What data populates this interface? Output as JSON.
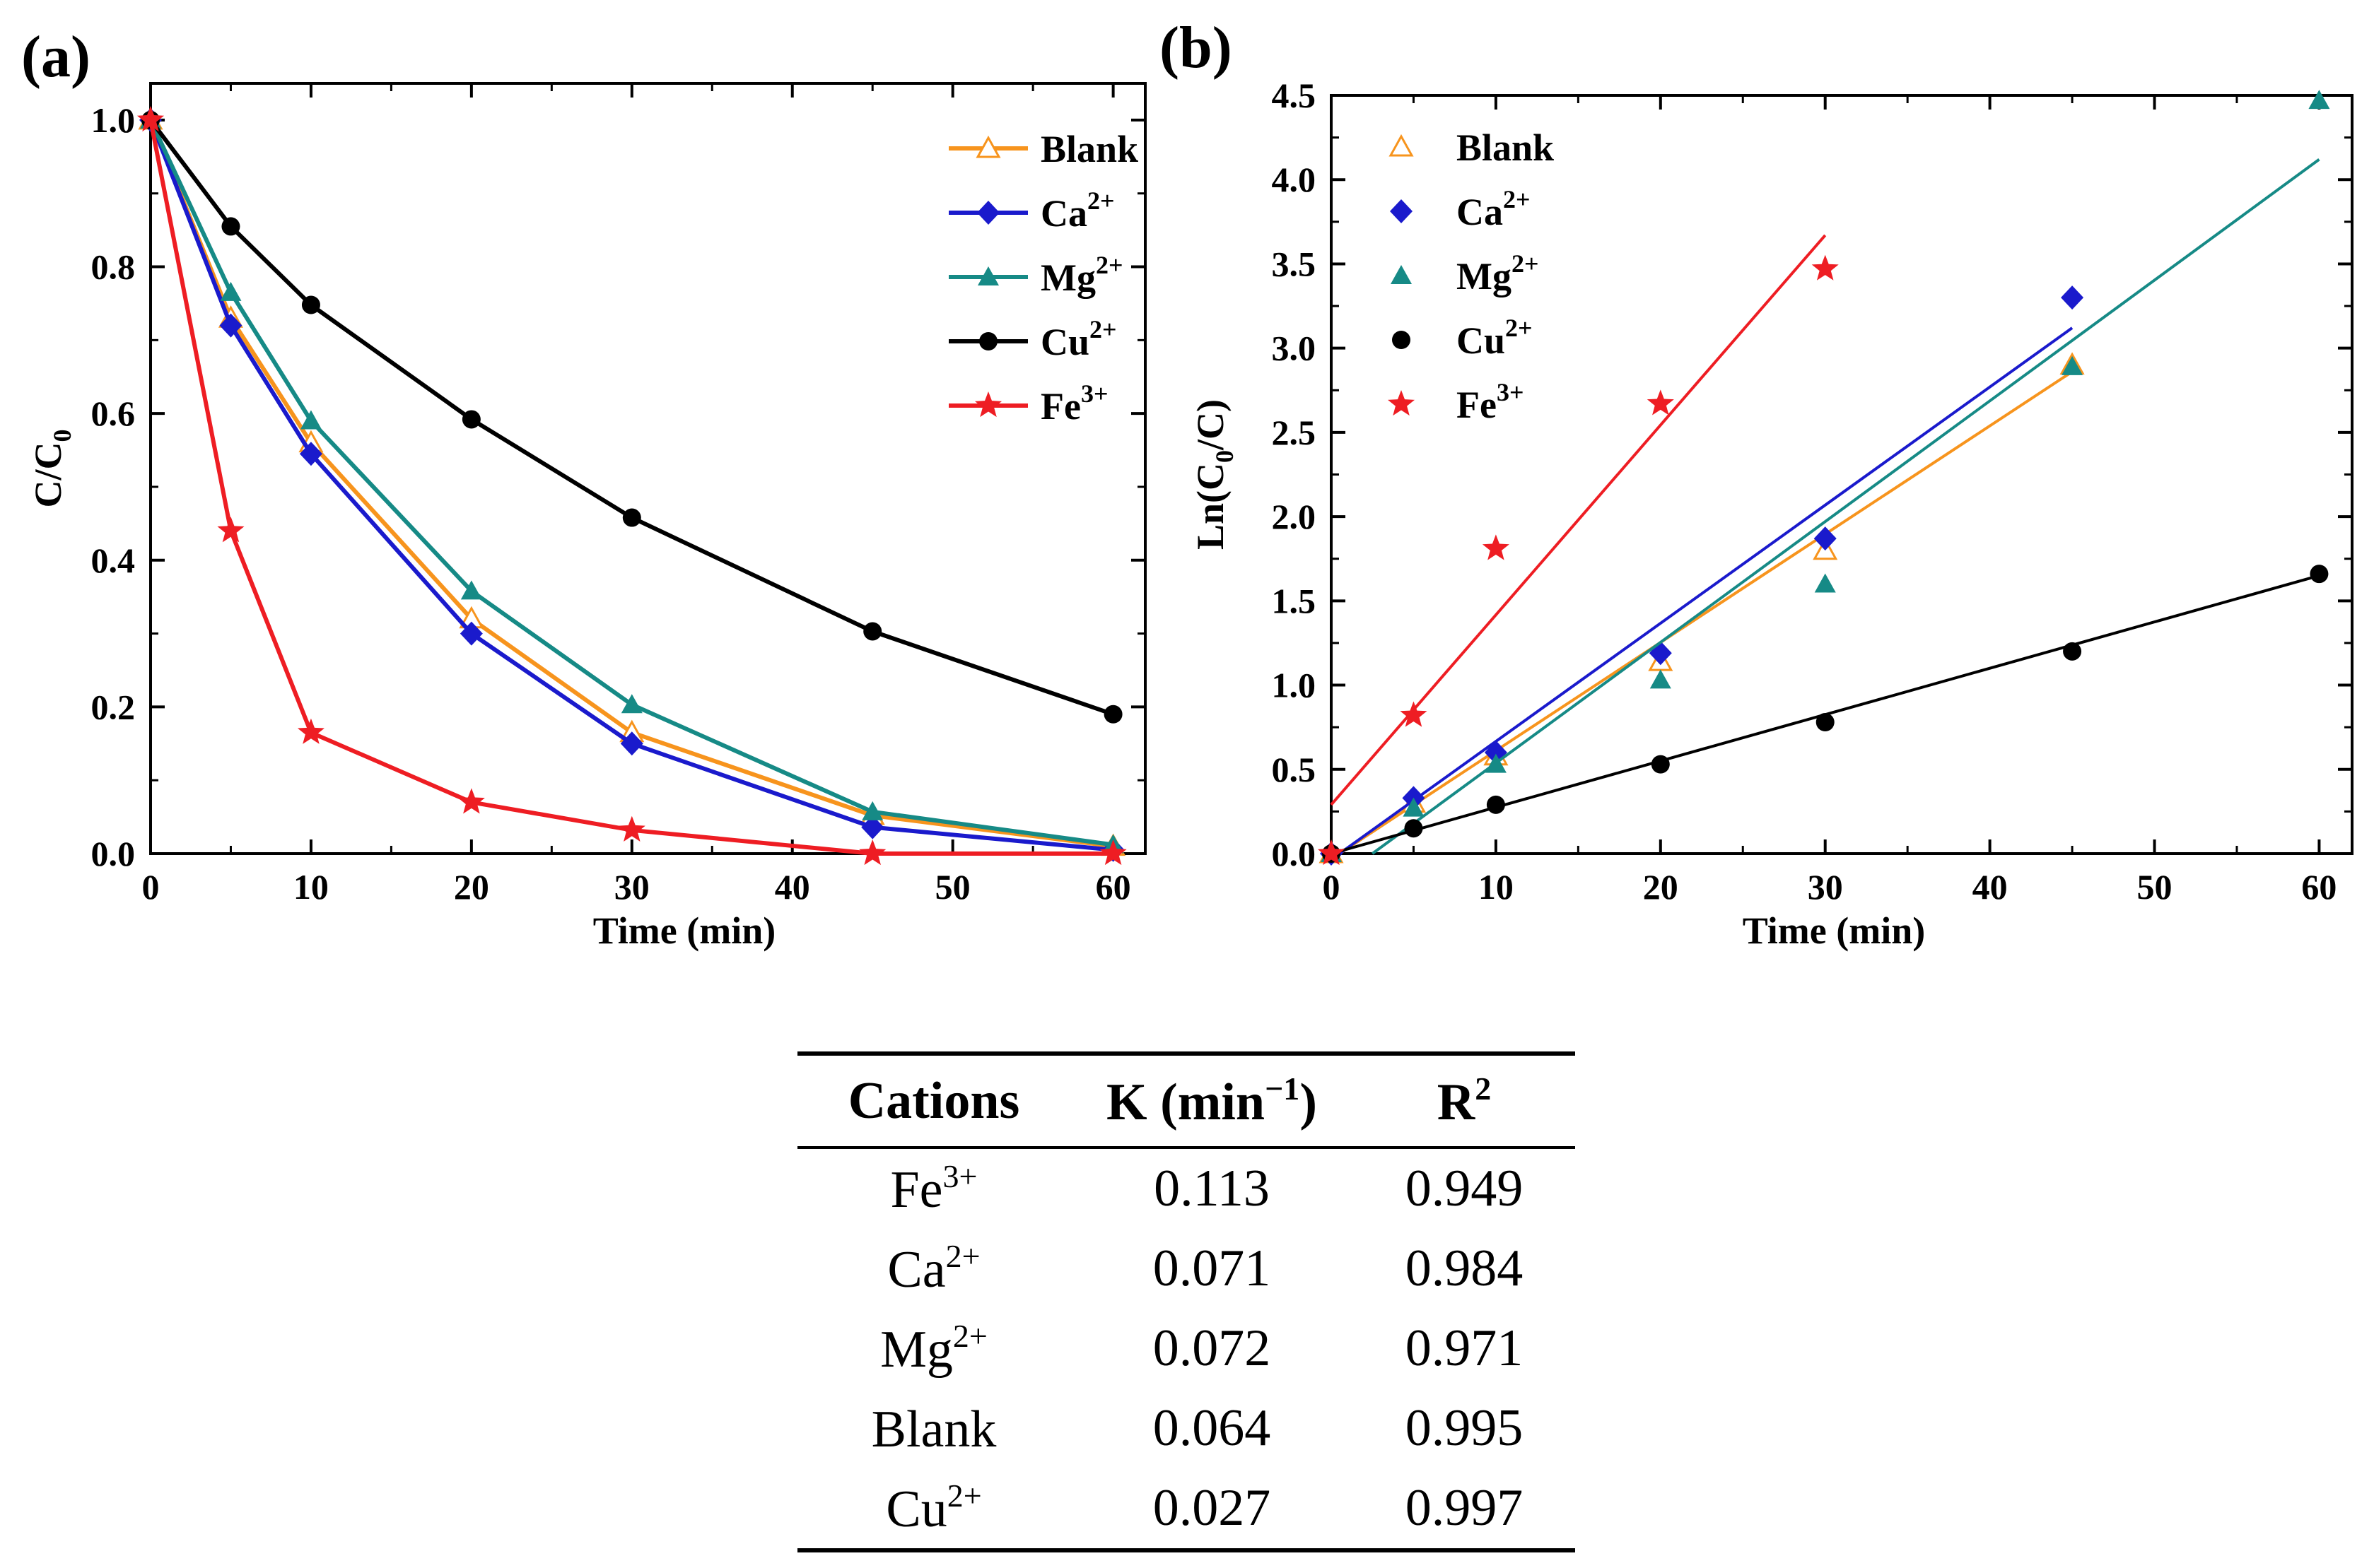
{
  "colors": {
    "Blank": "#f7941d",
    "Ca": "#1a1acc",
    "Mg": "#168a86",
    "Cu": "#000000",
    "Fe": "#ee1d23"
  },
  "chart_data": [
    {
      "panel": "(a)",
      "type": "line",
      "xlabel": "Time (min)",
      "ylabel": "C/C0",
      "ylabel_base": "C/C",
      "ylabel_sub": "0",
      "xlim": [
        0,
        62
      ],
      "ylim": [
        0,
        1.05
      ],
      "xticks": [
        0,
        10,
        20,
        30,
        40,
        50,
        60
      ],
      "yticks": [
        "0.0",
        "0.2",
        "0.4",
        "0.6",
        "0.8",
        "1.0"
      ],
      "x": [
        0,
        5,
        10,
        20,
        30,
        45,
        60
      ],
      "legend_position": "top-right",
      "series": [
        {
          "name": "Blank",
          "key": "Blank",
          "label": "Blank",
          "sup": "",
          "marker": "open-triangle",
          "values": [
            1.0,
            0.73,
            0.56,
            0.32,
            0.165,
            0.052,
            0.01
          ]
        },
        {
          "name": "Ca2+",
          "key": "Ca",
          "label": "Ca",
          "sup": "2+",
          "marker": "diamond",
          "values": [
            1.0,
            0.72,
            0.545,
            0.3,
            0.15,
            0.036,
            0.005
          ]
        },
        {
          "name": "Mg2+",
          "key": "Mg",
          "label": "Mg",
          "sup": "2+",
          "marker": "triangle",
          "values": [
            1.0,
            0.765,
            0.59,
            0.358,
            0.203,
            0.057,
            0.012
          ]
        },
        {
          "name": "Cu2+",
          "key": "Cu",
          "label": "Cu",
          "sup": "2+",
          "marker": "circle",
          "values": [
            1.0,
            0.855,
            0.748,
            0.592,
            0.458,
            0.303,
            0.19
          ]
        },
        {
          "name": "Fe3+",
          "key": "Fe",
          "label": "Fe",
          "sup": "3+",
          "marker": "star",
          "values": [
            1.0,
            0.44,
            0.165,
            0.07,
            0.032,
            0.0,
            0.0
          ]
        }
      ]
    },
    {
      "panel": "(b)",
      "type": "scatter",
      "xlabel": "Time (min)",
      "ylabel": "Ln(C0/C)",
      "ylabel_pre": "Ln(C",
      "ylabel_sub": "0",
      "ylabel_post": "/C)",
      "xlim": [
        0,
        62
      ],
      "ylim": [
        0,
        4.5
      ],
      "xticks": [
        0,
        10,
        20,
        30,
        40,
        50,
        60
      ],
      "yticks": [
        "0.0",
        "0.5",
        "1.0",
        "1.5",
        "2.0",
        "2.5",
        "3.0",
        "3.5",
        "4.0",
        "4.5"
      ],
      "legend_position": "top-left",
      "series": [
        {
          "name": "Blank",
          "key": "Blank",
          "label": "Blank",
          "sup": "",
          "marker": "open-triangle",
          "x": [
            0,
            5,
            10,
            20,
            30,
            45
          ],
          "values": [
            0,
            0.3,
            0.58,
            1.14,
            1.8,
            2.9
          ],
          "fit": {
            "x": [
              0.5,
              45
            ],
            "y": [
              0,
              2.86
            ]
          }
        },
        {
          "name": "Ca2+",
          "key": "Ca",
          "label": "Ca",
          "sup": "2+",
          "marker": "diamond",
          "x": [
            0,
            5,
            10,
            20,
            30,
            45
          ],
          "values": [
            0,
            0.33,
            0.6,
            1.19,
            1.87,
            3.3
          ],
          "fit": {
            "x": [
              0.5,
              45
            ],
            "y": [
              0,
              3.12
            ]
          }
        },
        {
          "name": "Mg2+",
          "key": "Mg",
          "label": "Mg",
          "sup": "2+",
          "marker": "triangle",
          "x": [
            0,
            5,
            10,
            20,
            30,
            45,
            60
          ],
          "values": [
            0,
            0.27,
            0.53,
            1.03,
            1.6,
            2.89,
            4.47
          ],
          "fit": {
            "x": [
              2.5,
              60
            ],
            "y": [
              0,
              4.12
            ]
          }
        },
        {
          "name": "Cu2+",
          "key": "Cu",
          "label": "Cu",
          "sup": "2+",
          "marker": "circle",
          "x": [
            0,
            5,
            10,
            20,
            30,
            45,
            60
          ],
          "values": [
            0,
            0.15,
            0.29,
            0.53,
            0.78,
            1.2,
            1.66
          ],
          "fit": {
            "x": [
              0,
              60
            ],
            "y": [
              0,
              1.65
            ]
          }
        },
        {
          "name": "Fe3+",
          "key": "Fe",
          "label": "Fe",
          "sup": "3+",
          "marker": "star",
          "x": [
            0,
            5,
            10,
            20,
            30
          ],
          "values": [
            0,
            0.82,
            1.81,
            2.67,
            3.47
          ],
          "fit": {
            "x": [
              0,
              30
            ],
            "y": [
              0.29,
              3.67
            ]
          }
        }
      ]
    }
  ],
  "table": {
    "headers": {
      "cations": "Cations",
      "k": "K (min",
      "k_sup": "−1",
      "k_close": ")",
      "r": "R",
      "r_sup": "2"
    },
    "rows": [
      {
        "cation": "Fe",
        "sup": "3+",
        "k": "0.113",
        "r2": "0.949"
      },
      {
        "cation": "Ca",
        "sup": "2+",
        "k": "0.071",
        "r2": "0.984"
      },
      {
        "cation": "Mg",
        "sup": "2+",
        "k": "0.072",
        "r2": "0.971"
      },
      {
        "cation": "Blank",
        "sup": "",
        "k": "0.064",
        "r2": "0.995"
      },
      {
        "cation": "Cu",
        "sup": "2+",
        "k": "0.027",
        "r2": "0.997"
      }
    ]
  }
}
